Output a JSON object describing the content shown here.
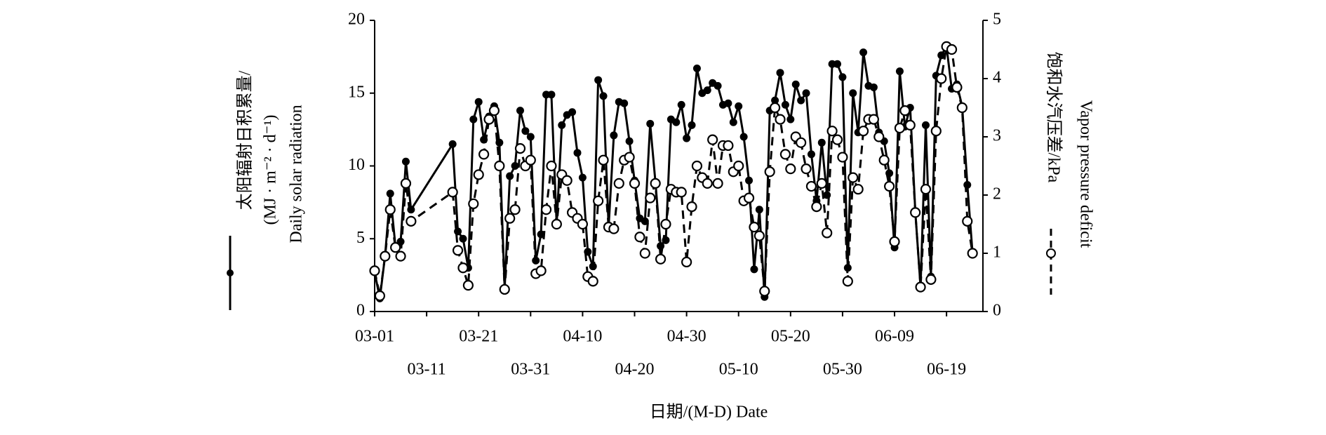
{
  "chart_data": {
    "type": "line",
    "xlabel": "日期/(M-D)  Date",
    "ylabel": [
      "太阳辐射日积累量/",
      "(MJ · m⁻² · d⁻¹)",
      "Daily solar radiation"
    ],
    "y2label": [
      "饱和水汽压差/kPa",
      "Vapor pressure deficit"
    ],
    "x": [
      "03-01",
      "03-02",
      "03-03",
      "03-04",
      "03-05",
      "03-06",
      "03-07",
      "03-08",
      "03-16",
      "03-17",
      "03-18",
      "03-19",
      "03-20",
      "03-21",
      "03-22",
      "03-23",
      "03-24",
      "03-25",
      "03-26",
      "03-27",
      "03-28",
      "03-29",
      "03-30",
      "03-31",
      "04-01",
      "04-02",
      "04-03",
      "04-04",
      "04-05",
      "04-06",
      "04-07",
      "04-08",
      "04-09",
      "04-10",
      "04-11",
      "04-12",
      "04-13",
      "04-14",
      "04-15",
      "04-16",
      "04-17",
      "04-18",
      "04-19",
      "04-20",
      "04-21",
      "04-22",
      "04-23",
      "04-24",
      "04-25",
      "04-26",
      "04-27",
      "04-28",
      "04-29",
      "04-30",
      "05-01",
      "05-02",
      "05-03",
      "05-04",
      "05-05",
      "05-06",
      "05-07",
      "05-08",
      "05-09",
      "05-10",
      "05-11",
      "05-12",
      "05-13",
      "05-14",
      "05-15",
      "05-16",
      "05-17",
      "05-18",
      "05-19",
      "05-20",
      "05-21",
      "05-22",
      "05-23",
      "05-24",
      "05-25",
      "05-26",
      "05-27",
      "05-28",
      "05-29",
      "05-30",
      "05-31",
      "06-01",
      "06-02",
      "06-03",
      "06-04",
      "06-05",
      "06-06",
      "06-07",
      "06-08",
      "06-09",
      "06-10",
      "06-11",
      "06-12",
      "06-13",
      "06-14",
      "06-15",
      "06-16",
      "06-17",
      "06-18",
      "06-19",
      "06-20",
      "06-21",
      "06-22",
      "06-23",
      "06-24"
    ],
    "series": [
      {
        "color": "#000000",
        "line_style": "solid",
        "marker": "filled-circle",
        "values": [
          2.7,
          0.9,
          3.8,
          8.1,
          4.5,
          4.8,
          10.3,
          7.0,
          11.5,
          5.5,
          5.0,
          3.0,
          13.2,
          14.4,
          11.8,
          13.4,
          14.1,
          11.6,
          1.6,
          9.3,
          10.0,
          13.8,
          12.4,
          12.0,
          3.5,
          5.3,
          14.9,
          14.9,
          6.0,
          12.8,
          13.5,
          13.7,
          10.9,
          9.2,
          4.1,
          3.1,
          15.9,
          14.8,
          5.8,
          12.1,
          14.4,
          14.3,
          11.7,
          9.0,
          6.4,
          6.2,
          12.9,
          8.9,
          4.5,
          4.9,
          13.2,
          13.0,
          14.2,
          11.9,
          12.8,
          16.7,
          15.0,
          15.2,
          15.7,
          15.5,
          14.2,
          14.3,
          13.0,
          14.1,
          12.0,
          9.0,
          2.9,
          7.0,
          1.0,
          13.8,
          14.5,
          16.4,
          14.2,
          13.2,
          15.6,
          14.5,
          15.0,
          10.8,
          7.6,
          11.6,
          8.0,
          17.0,
          17.0,
          16.1,
          3.0,
          15.0,
          12.3,
          17.8,
          15.5,
          15.4,
          12.3,
          11.7,
          9.5,
          4.4,
          16.5,
          12.7,
          14.0,
          6.8,
          1.7,
          12.8,
          2.4,
          16.2,
          17.6,
          18.2,
          15.3,
          15.6,
          14.1,
          8.7,
          4.0
        ]
      },
      {
        "color": "#000000",
        "line_style": "dashed",
        "marker": "open-circle",
        "axis": "y2",
        "values": [
          0.7,
          0.27,
          0.95,
          1.75,
          1.1,
          0.95,
          2.2,
          1.55,
          2.05,
          1.05,
          0.75,
          0.45,
          1.85,
          2.35,
          2.7,
          3.3,
          3.45,
          2.5,
          0.38,
          1.6,
          1.75,
          2.8,
          2.5,
          2.6,
          0.65,
          0.7,
          1.75,
          2.5,
          1.5,
          2.35,
          2.25,
          1.7,
          1.6,
          1.5,
          0.6,
          0.52,
          1.9,
          2.6,
          1.45,
          1.42,
          2.2,
          2.6,
          2.65,
          2.2,
          1.28,
          1.0,
          1.95,
          2.2,
          0.9,
          1.5,
          2.1,
          2.05,
          2.05,
          0.85,
          1.8,
          2.5,
          2.3,
          2.2,
          2.95,
          2.2,
          2.85,
          2.85,
          2.4,
          2.5,
          1.9,
          1.95,
          1.45,
          1.3,
          0.35,
          2.4,
          3.5,
          3.3,
          2.7,
          2.45,
          3.0,
          2.9,
          2.45,
          2.15,
          1.8,
          2.2,
          1.35,
          3.1,
          2.95,
          2.65,
          0.52,
          2.3,
          2.1,
          3.1,
          3.3,
          3.3,
          3.0,
          2.6,
          2.15,
          1.2,
          3.15,
          3.45,
          3.2,
          1.7,
          0.42,
          2.1,
          0.55,
          3.1,
          4.0,
          4.55,
          4.5,
          3.85,
          3.5,
          1.55,
          1.0
        ]
      }
    ],
    "xlim": [
      "03-01",
      "06-26"
    ],
    "xticks": [
      "03-01",
      "03-11",
      "03-21",
      "03-31",
      "04-10",
      "04-20",
      "04-30",
      "05-10",
      "05-20",
      "05-30",
      "06-09",
      "06-19"
    ],
    "ylim": [
      0,
      20
    ],
    "yticks": [
      0,
      5,
      10,
      15,
      20
    ],
    "y2lim": [
      0,
      5
    ],
    "y2ticks": [
      0,
      1,
      2,
      3,
      4,
      5
    ]
  }
}
